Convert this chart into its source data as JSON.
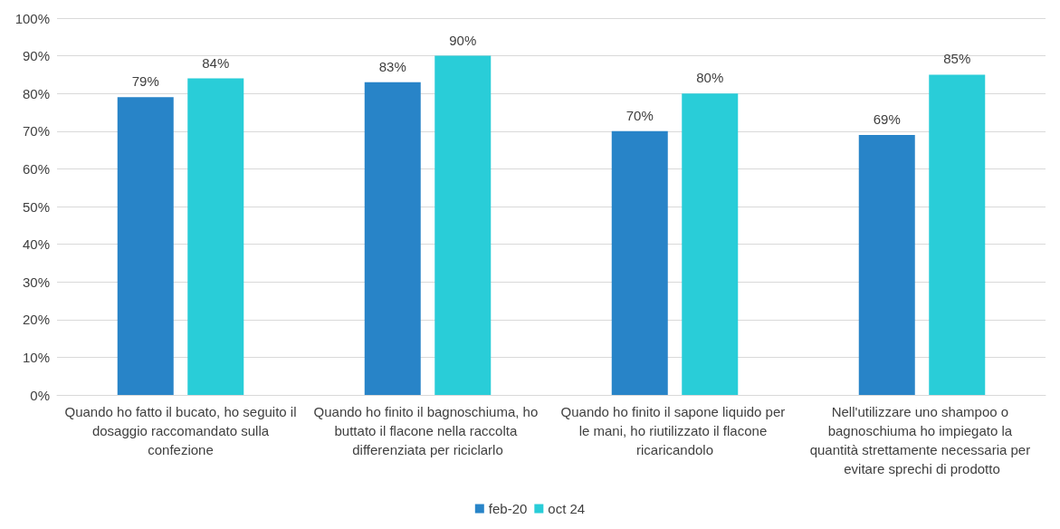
{
  "chart_data": {
    "type": "bar",
    "categories": [
      "Quando ho fatto il bucato, ho seguito il dosaggio raccomandato sulla confezione",
      "Quando ho finito il bagnoschiuma, ho buttato il flacone nella raccolta differenziata per riciclarlo",
      "Quando ho finito il sapone liquido per le mani, ho riutilizzato il flacone ricaricandolo",
      "Nell'utilizzare uno shampoo o bagnoschiuma ho impiegato la quantità strettamente necessaria per evitare sprechi di prodotto"
    ],
    "series": [
      {
        "name": "feb-20",
        "color": "#2884c8",
        "values": [
          79,
          83,
          70,
          69
        ],
        "value_labels": [
          "79%",
          "83%",
          "70%",
          "69%"
        ]
      },
      {
        "name": "oct 24",
        "color": "#29cdd8",
        "values": [
          84,
          90,
          80,
          85
        ],
        "value_labels": [
          "84%",
          "90%",
          "80%",
          "85%"
        ]
      }
    ],
    "ylim": [
      0,
      100
    ],
    "yticks": [
      {
        "value": 0,
        "label": "0%"
      },
      {
        "value": 10,
        "label": "10%"
      },
      {
        "value": 20,
        "label": "20%"
      },
      {
        "value": 30,
        "label": "30%"
      },
      {
        "value": 40,
        "label": "40%"
      },
      {
        "value": 50,
        "label": "50%"
      },
      {
        "value": 60,
        "label": "60%"
      },
      {
        "value": 70,
        "label": "70%"
      },
      {
        "value": 80,
        "label": "80%"
      },
      {
        "value": 90,
        "label": "90%"
      },
      {
        "value": 100,
        "label": "100%"
      }
    ],
    "grid": "y",
    "legend": "bottom"
  }
}
